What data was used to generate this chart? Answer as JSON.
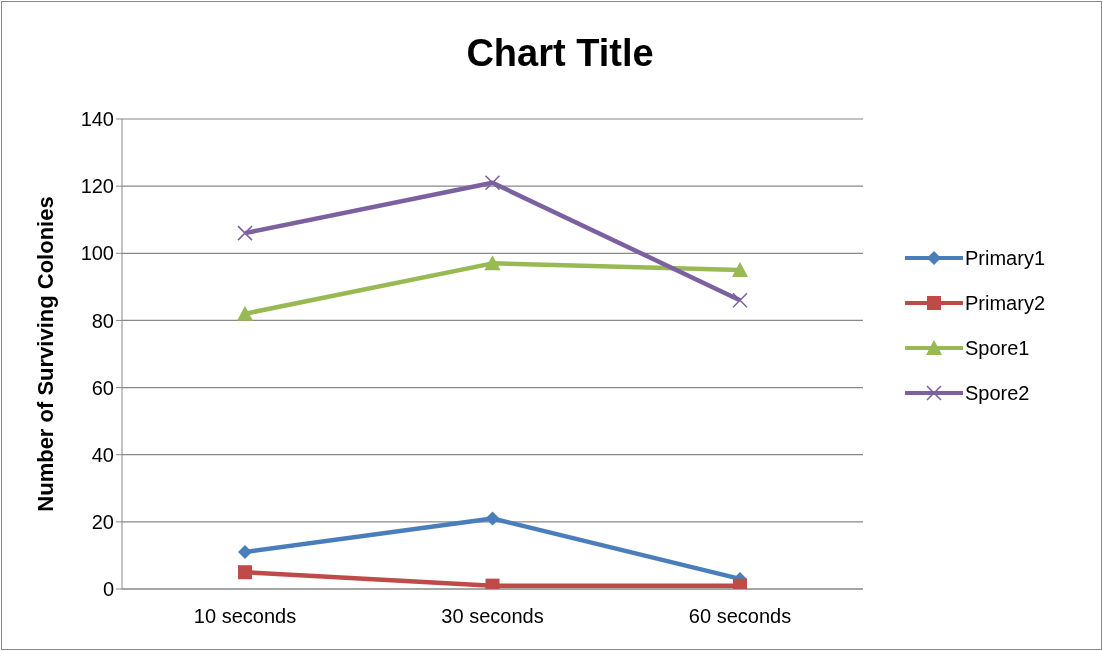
{
  "chart_data": {
    "type": "line",
    "title": "Chart Title",
    "ylabel": "Number of Surviving Colonies",
    "categories": [
      "10 seconds",
      "30 seconds",
      "60 seconds"
    ],
    "series": [
      {
        "name": "Primary1",
        "color": "#4a7ebb",
        "values": [
          11,
          21,
          3
        ],
        "marker": "diamond"
      },
      {
        "name": "Primary2",
        "color": "#be4b48",
        "values": [
          5,
          1,
          1
        ],
        "marker": "square"
      },
      {
        "name": "Spore1",
        "color": "#98b954",
        "values": [
          82,
          97,
          95
        ],
        "marker": "triangle"
      },
      {
        "name": "Spore2",
        "color": "#7d60a0",
        "values": [
          106,
          121,
          86
        ],
        "marker": "cross"
      }
    ],
    "ylim": [
      0,
      140
    ],
    "yticks": [
      0,
      20,
      40,
      60,
      80,
      100,
      120,
      140
    ],
    "grid": "y",
    "legend": "right"
  }
}
